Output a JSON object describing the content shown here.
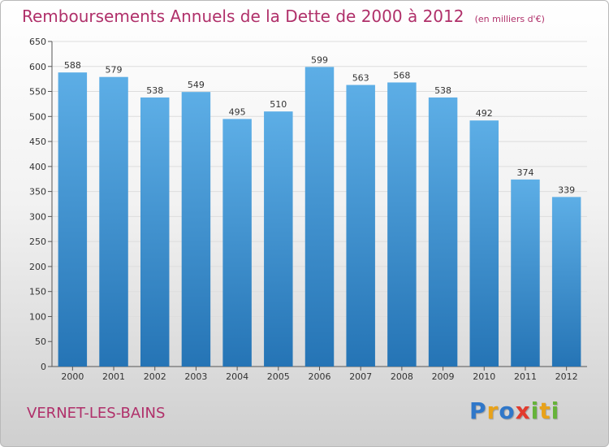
{
  "title": "Remboursements Annuels de la Dette de 2000 à 2012",
  "unit": "(en milliers d'€)",
  "commune": "VERNET-LES-BAINS",
  "brand": {
    "name": "Proxiti",
    "letters": [
      {
        "char": "P",
        "color": "#2f77c9"
      },
      {
        "char": "r",
        "color": "#e8a21a"
      },
      {
        "char": "o",
        "color": "#2f77c9"
      },
      {
        "char": "x",
        "color": "#e23b2e"
      },
      {
        "char": "i",
        "color": "#66b33a"
      },
      {
        "char": "t",
        "color": "#e8a21a"
      },
      {
        "char": "i",
        "color": "#66b33a"
      }
    ]
  },
  "colors": {
    "title": "#b0306a",
    "bar_top": "#5daee6",
    "bar_bottom": "#2574b5",
    "grid": "#dddddd"
  },
  "chart_data": {
    "type": "bar",
    "categories": [
      "2000",
      "2001",
      "2002",
      "2003",
      "2004",
      "2005",
      "2006",
      "2007",
      "2008",
      "2009",
      "2010",
      "2011",
      "2012"
    ],
    "values": [
      588,
      579,
      538,
      549,
      495,
      510,
      599,
      563,
      568,
      538,
      492,
      374,
      339
    ],
    "title": "Remboursements Annuels de la Dette de 2000 à 2012",
    "xlabel": "",
    "ylabel": "",
    "ylim": [
      0,
      650
    ],
    "yticks": [
      0,
      50,
      100,
      150,
      200,
      250,
      300,
      350,
      400,
      450,
      500,
      550,
      600,
      650
    ],
    "grid": true,
    "show_value_labels": true
  }
}
